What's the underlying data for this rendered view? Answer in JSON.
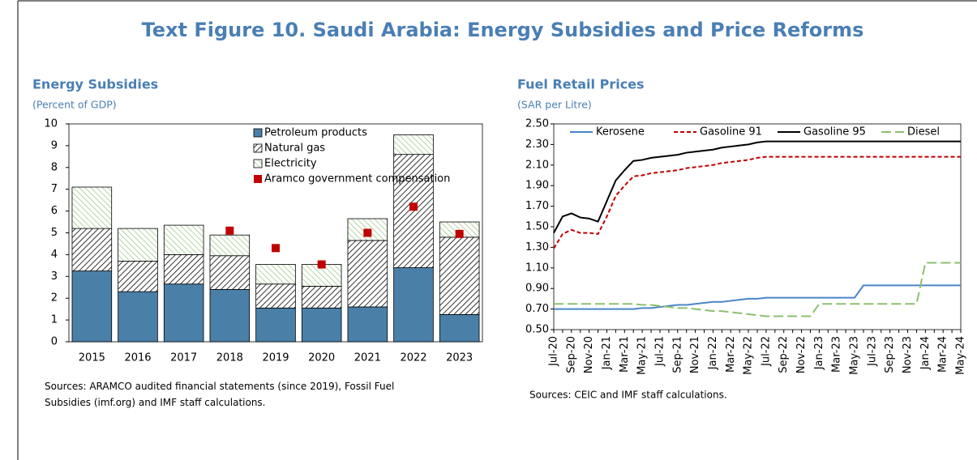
{
  "title": "Text Figure 10. Saudi Arabia: Energy Subsidies and Price Reforms",
  "chart_data": [
    {
      "type": "bar",
      "stacked": true,
      "title": "Energy Subsidies",
      "subtitle": "(Percent of GDP)",
      "note": "Sources: ARAMCO audited financial statements (since 2019), Fossil Fuel Subsidies (imf.org) and IMF staff calculations.",
      "categories": [
        "2015",
        "2016",
        "2017",
        "2018",
        "2019",
        "2020",
        "2021",
        "2022",
        "2023"
      ],
      "series": [
        {
          "name": "Petroleum products",
          "color": "#4a7fa8",
          "pattern": "solid",
          "values": [
            3.25,
            2.3,
            2.65,
            2.4,
            1.55,
            1.55,
            1.6,
            3.4,
            1.25
          ]
        },
        {
          "name": "Natural gas",
          "color": "#000000",
          "pattern": "diagonal",
          "values": [
            1.95,
            1.4,
            1.35,
            1.55,
            1.1,
            1.0,
            3.05,
            5.2,
            3.55
          ]
        },
        {
          "name": "Electricity",
          "color": "#8bbf6e",
          "pattern": "diagonal",
          "values": [
            1.9,
            1.5,
            1.35,
            0.95,
            0.9,
            1.0,
            1.0,
            0.9,
            0.7
          ]
        },
        {
          "name": "Aramco government compensation",
          "color": "#c00000",
          "type": "scatter",
          "values": [
            null,
            null,
            null,
            5.1,
            4.3,
            3.55,
            5.0,
            6.2,
            4.95
          ]
        }
      ],
      "ylim": [
        0,
        10
      ],
      "yticks": [
        0,
        1,
        2,
        3,
        4,
        5,
        6,
        7,
        8,
        9,
        10
      ],
      "legend": "top-right"
    },
    {
      "type": "line",
      "title": "Fuel Retail Prices",
      "subtitle": "(SAR per Litre)",
      "note": "Sources: CEIC and IMF staff calculations.",
      "categories": [
        "Jul-20",
        null,
        "Sep-20",
        null,
        "Nov-20",
        null,
        "Jan-21",
        null,
        "Mar-21",
        null,
        "May-21",
        null,
        "Jul-21",
        null,
        "Sep-21",
        null,
        "Nov-21",
        null,
        "Jan-22",
        null,
        "Mar-22",
        null,
        "May-22",
        null,
        "Jul-22",
        null,
        "Sep-22",
        null,
        "Nov-22",
        null,
        "Jan-23",
        null,
        "Mar-23",
        null,
        "May-23",
        null,
        "Jul-23",
        null,
        "Sep-23",
        null,
        "Nov-23",
        null,
        "Jan-24",
        null,
        "Mar-24",
        null,
        "May-24"
      ],
      "series": [
        {
          "name": "Kerosene",
          "color": "#4a86c5",
          "dash": "none",
          "values": [
            0.7,
            0.7,
            0.7,
            0.7,
            0.7,
            0.7,
            0.7,
            0.7,
            0.7,
            0.7,
            0.71,
            0.71,
            0.72,
            0.73,
            0.74,
            0.74,
            0.75,
            0.76,
            0.77,
            0.77,
            0.78,
            0.79,
            0.8,
            0.8,
            0.81,
            0.81,
            0.81,
            0.81,
            0.81,
            0.81,
            0.81,
            0.81,
            0.81,
            0.81,
            0.81,
            0.93,
            0.93,
            0.93,
            0.93,
            0.93,
            0.93,
            0.93,
            0.93,
            0.93,
            0.93,
            0.93,
            0.93
          ]
        },
        {
          "name": "Gasoline 91",
          "color": "#c00000",
          "dash": "5 3",
          "values": [
            1.29,
            1.43,
            1.47,
            1.44,
            1.44,
            1.43,
            1.6,
            1.8,
            1.9,
            1.99,
            2.0,
            2.02,
            2.03,
            2.04,
            2.05,
            2.07,
            2.08,
            2.09,
            2.1,
            2.12,
            2.13,
            2.14,
            2.15,
            2.17,
            2.18,
            2.18,
            2.18,
            2.18,
            2.18,
            2.18,
            2.18,
            2.18,
            2.18,
            2.18,
            2.18,
            2.18,
            2.18,
            2.18,
            2.18,
            2.18,
            2.18,
            2.18,
            2.18,
            2.18,
            2.18,
            2.18,
            2.18
          ]
        },
        {
          "name": "Gasoline 95",
          "color": "#000000",
          "dash": "none",
          "values": [
            1.44,
            1.6,
            1.63,
            1.59,
            1.58,
            1.55,
            1.75,
            1.95,
            2.05,
            2.14,
            2.15,
            2.17,
            2.18,
            2.19,
            2.2,
            2.22,
            2.23,
            2.24,
            2.25,
            2.27,
            2.28,
            2.29,
            2.3,
            2.32,
            2.33,
            2.33,
            2.33,
            2.33,
            2.33,
            2.33,
            2.33,
            2.33,
            2.33,
            2.33,
            2.33,
            2.33,
            2.33,
            2.33,
            2.33,
            2.33,
            2.33,
            2.33,
            2.33,
            2.33,
            2.33,
            2.33,
            2.33
          ]
        },
        {
          "name": "Diesel",
          "color": "#8bbf6e",
          "dash": "12 5",
          "values": [
            0.75,
            0.75,
            0.75,
            0.75,
            0.75,
            0.75,
            0.75,
            0.75,
            0.75,
            0.75,
            0.74,
            0.74,
            0.73,
            0.72,
            0.71,
            0.71,
            0.7,
            0.69,
            0.68,
            0.68,
            0.67,
            0.66,
            0.65,
            0.64,
            0.63,
            0.63,
            0.63,
            0.63,
            0.63,
            0.63,
            0.75,
            0.75,
            0.75,
            0.75,
            0.75,
            0.75,
            0.75,
            0.75,
            0.75,
            0.75,
            0.75,
            0.75,
            1.15,
            1.15,
            1.15,
            1.15,
            1.15
          ]
        }
      ],
      "ylim": [
        0.5,
        2.5
      ],
      "yticks": [
        {
          "value": 0.5,
          "label": "0.50"
        },
        {
          "value": 0.7,
          "label": "0.70"
        },
        {
          "value": 0.9,
          "label": "0.90"
        },
        {
          "value": 1.1,
          "label": "1.10"
        },
        {
          "value": 1.3,
          "label": "1.30"
        },
        {
          "value": 1.5,
          "label": "1.50"
        },
        {
          "value": 1.7,
          "label": "1.70"
        },
        {
          "value": 1.9,
          "label": "1.90"
        },
        {
          "value": 2.1,
          "label": "2.10"
        },
        {
          "value": 2.3,
          "label": "2.30"
        },
        {
          "value": 2.5,
          "label": "2.50"
        }
      ],
      "legend": "top"
    }
  ]
}
